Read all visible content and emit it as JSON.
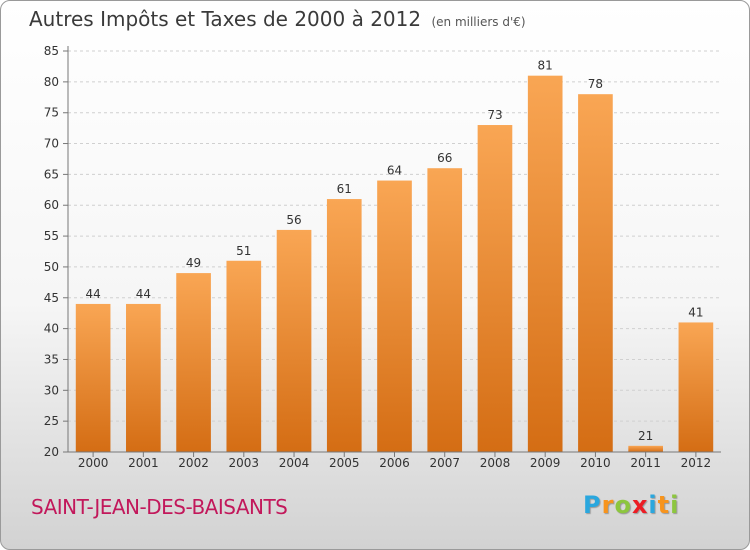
{
  "chart": {
    "title": "Autres Impôts et Taxes de 2000 à 2012",
    "subtitle": "(en milliers d'€)"
  },
  "footer": {
    "commune": "SAINT-JEAN-DES-BAISANTS",
    "logo_letters": [
      "P",
      "r",
      "o",
      "x",
      "i",
      "t",
      "i"
    ],
    "logo_colors": [
      "#2aa7de",
      "#f7941d",
      "#8dc63f",
      "#ec1c24",
      "#2aa7de",
      "#f7941d",
      "#8dc63f"
    ]
  },
  "chart_data": {
    "type": "bar",
    "title": "Autres Impôts et Taxes de 2000 à 2012",
    "subtitle": "(en milliers d'€)",
    "categories": [
      "2000",
      "2001",
      "2002",
      "2003",
      "2004",
      "2005",
      "2006",
      "2007",
      "2008",
      "2009",
      "2010",
      "2011",
      "2012"
    ],
    "values": [
      44,
      44,
      49,
      51,
      56,
      61,
      64,
      66,
      73,
      81,
      78,
      21,
      41
    ],
    "xlabel": "",
    "ylabel": "",
    "ylim": [
      20,
      85
    ],
    "yticks": [
      20,
      25,
      30,
      35,
      40,
      45,
      50,
      55,
      60,
      65,
      70,
      75,
      80,
      85
    ],
    "grid": true,
    "bar_color": "#f08a2c"
  }
}
